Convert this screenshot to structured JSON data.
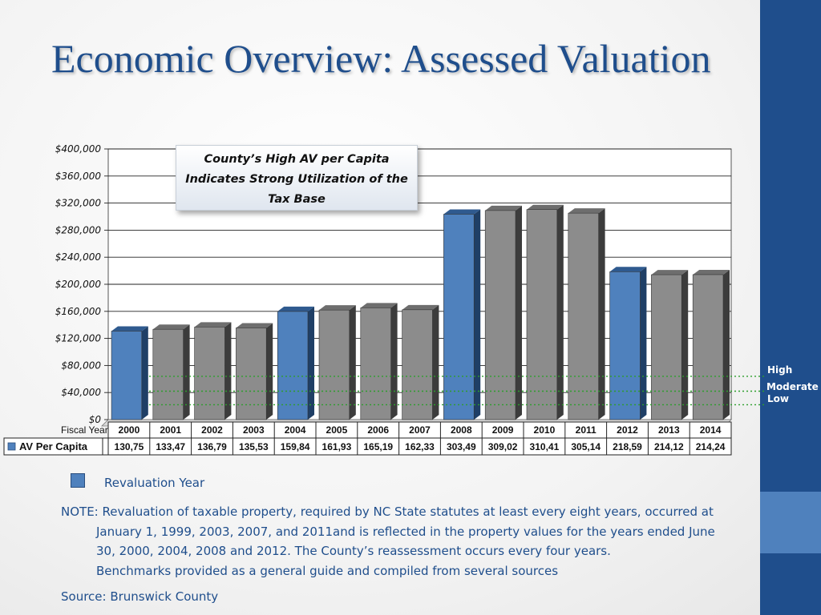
{
  "slide": {
    "title": "Economic Overview: Assessed Valuation",
    "callout": "County’s High AV per Capita Indicates Strong Utilization of the Tax Base",
    "legend_label": "Revaluation Year",
    "note_lines": [
      "NOTE: Revaluation of taxable property, required by NC State statutes at least every eight years, occurred at",
      "January 1, 1999, 2003, 2007, and 2011and is reflected in the property values for the years ended June",
      "30, 2000, 2004, 2008 and 2012. The County’s reassessment occurs every four years.",
      "Benchmarks provided as a general guide and compiled from several sources"
    ],
    "source": "Source: Brunswick County"
  },
  "benchmarks": [
    {
      "label": "High",
      "value": 64000
    },
    {
      "label": "Moderate",
      "value": 42000
    },
    {
      "label": "Low",
      "value": 22000
    }
  ],
  "chart_data": {
    "type": "bar",
    "xlabel": "Fiscal Year",
    "ylabel": "",
    "ylim": [
      0,
      400000
    ],
    "y_ticks": [
      "$0",
      "$40,000",
      "$80,000",
      "$120,000",
      "$160,000",
      "$200,000",
      "$240,000",
      "$280,000",
      "$320,000",
      "$360,000",
      "$400,000"
    ],
    "categories": [
      "2000",
      "2001",
      "2002",
      "2003",
      "2004",
      "2005",
      "2006",
      "2007",
      "2008",
      "2009",
      "2010",
      "2011",
      "2012",
      "2013",
      "2014"
    ],
    "series": [
      {
        "name": "AV Per Capita",
        "values": [
          130750,
          133470,
          136790,
          135530,
          159840,
          161930,
          165190,
          162330,
          303490,
          309020,
          310410,
          305140,
          218590,
          214120,
          214240
        ],
        "table_labels": [
          "130,75",
          "133,47",
          "136,79",
          "135,53",
          "159,84",
          "161,93",
          "165,19",
          "162,33",
          "303,49",
          "309,02",
          "310,41",
          "305,14",
          "218,59",
          "214,12",
          "214,24"
        ],
        "revaluation": [
          true,
          false,
          false,
          false,
          true,
          false,
          false,
          false,
          true,
          false,
          false,
          false,
          true,
          false,
          false
        ]
      }
    ],
    "colors": {
      "revaluation": "#4f81bd",
      "revaluation_top": "#2f5a8f",
      "revaluation_side": "#1f3f66",
      "regular": "#8c8c8c",
      "regular_top": "#6e6e6e",
      "regular_side": "#3c3c3c",
      "benchmark": "#2e9e2e"
    },
    "grid": true,
    "legend": "data-table"
  }
}
